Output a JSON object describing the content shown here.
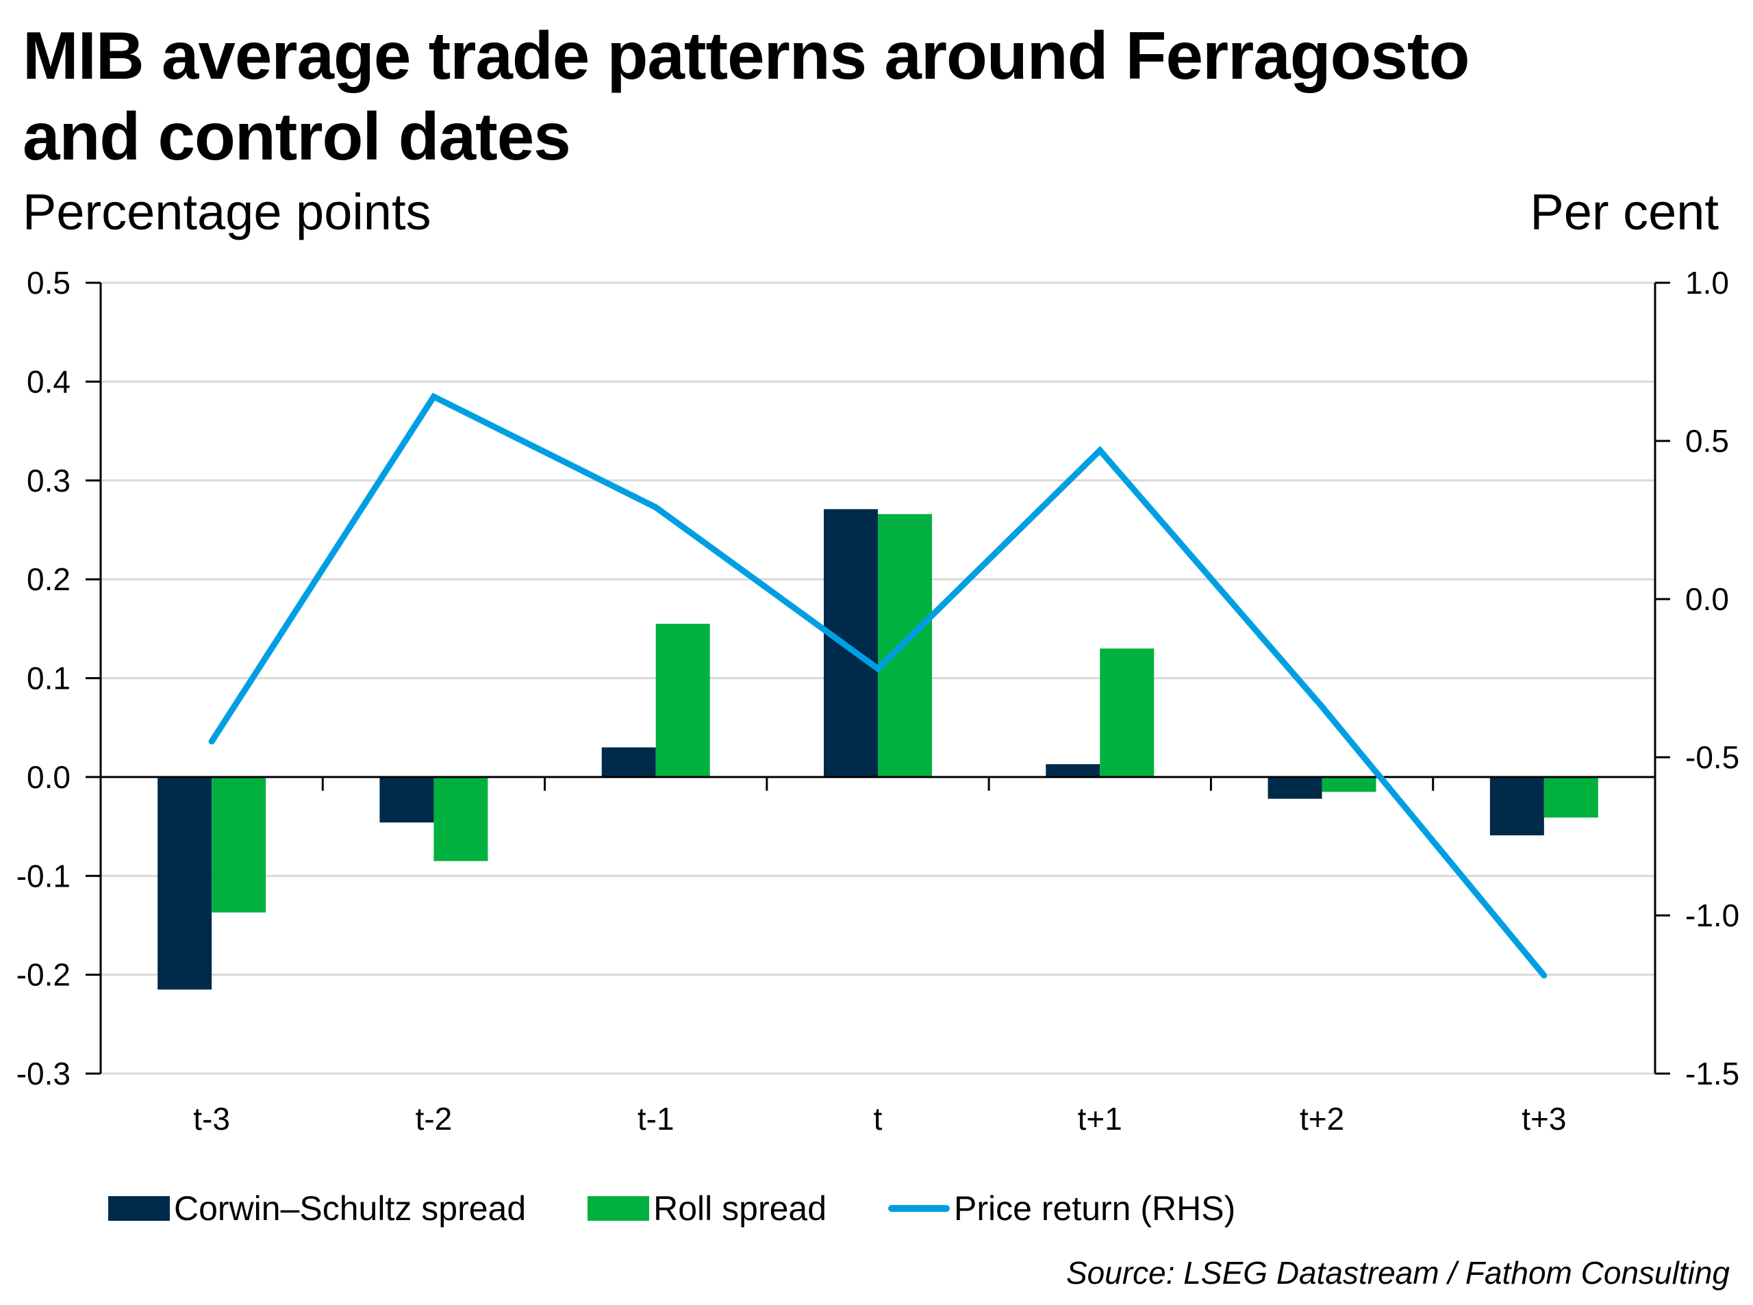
{
  "title": "MIB average trade patterns around Ferragosto and control dates",
  "title_lines": [
    "MIB average trade patterns around Ferragosto",
    "and control dates"
  ],
  "left_unit": "Percentage points",
  "right_unit": "Per cent",
  "source": "Source: LSEG Datastream / Fathom Consulting",
  "colors": {
    "corwin_schultz": "#002A4A",
    "roll": "#00B140",
    "price_return": "#009FE3",
    "gridline": "#D9D9D9",
    "axis": "#000000"
  },
  "chart_data": {
    "type": "bar",
    "title": "MIB average trade patterns around Ferragosto and control dates",
    "xlabel": "",
    "ylabel": "Percentage points",
    "y2label": "Per cent",
    "categories": [
      "t-3",
      "t-2",
      "t-1",
      "t",
      "t+1",
      "t+2",
      "t+3"
    ],
    "ylim": [
      -0.3,
      0.5
    ],
    "yticks": [
      "0.5",
      "0.4",
      "0.3",
      "0.2",
      "0.1",
      "0.0",
      "-0.1",
      "-0.2",
      "-0.3"
    ],
    "y2lim": [
      -1.5,
      1.0
    ],
    "y2ticks": [
      "1.0",
      "0.5",
      "0.0",
      "-0.5",
      "-1.0",
      "-1.5"
    ],
    "grid": true,
    "legend_position": "bottom",
    "series": [
      {
        "name": "Corwin–Schultz spread",
        "type": "bar",
        "axis": "left",
        "values": [
          -0.215,
          -0.046,
          0.03,
          0.271,
          0.013,
          -0.022,
          -0.059
        ]
      },
      {
        "name": "Roll spread",
        "type": "bar",
        "axis": "left",
        "values": [
          -0.137,
          -0.085,
          0.155,
          0.266,
          0.13,
          -0.015,
          -0.041
        ]
      },
      {
        "name": "Price return (RHS)",
        "type": "line",
        "axis": "right",
        "values": [
          -0.45,
          0.64,
          0.29,
          -0.22,
          0.47,
          -0.34,
          -1.19
        ]
      }
    ]
  }
}
